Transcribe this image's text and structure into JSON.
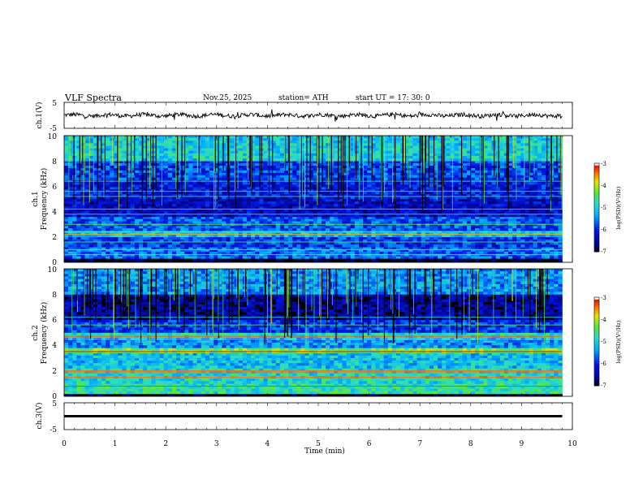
{
  "header": {
    "title": "VLF  Spectra",
    "date": "Nov.25, 2025",
    "station": "station= ATH",
    "start": "start  UT  =    17: 30: 0"
  },
  "chart_data": [
    {
      "type": "line",
      "panel": "ch1-waveform",
      "ylabel": "ch.1(V)",
      "ylim": [
        -5,
        5
      ],
      "yticks": [
        "5",
        "-5"
      ],
      "xlim": [
        0,
        10
      ],
      "x_extent_min": 9.8,
      "baseline": 0,
      "color": "#000000"
    },
    {
      "type": "heatmap",
      "panel": "ch1-spectrogram",
      "ylabel_line1": "ch.1",
      "ylabel_line2": "Frequency  (kHz)",
      "ylim": [
        0,
        10
      ],
      "yticks": [
        "0",
        "2",
        "4",
        "6",
        "8",
        "10"
      ],
      "xlim": [
        0,
        10
      ],
      "x_extent_min": 9.8,
      "colorbar": {
        "label": "log(PSD)(V²/Hz)",
        "range": [
          -7,
          -3
        ],
        "ticks": [
          "-3",
          "-4",
          "-5",
          "-6",
          "-7"
        ]
      },
      "bands": [
        {
          "f": [
            0.0,
            0.3
          ],
          "level": -7.0
        },
        {
          "f": [
            0.3,
            1.2
          ],
          "level": -5.6
        },
        {
          "f": [
            1.2,
            2.0
          ],
          "level": -5.9
        },
        {
          "f": [
            2.0,
            2.5
          ],
          "level": -5.1
        },
        {
          "f": [
            2.5,
            3.6
          ],
          "level": -5.7
        },
        {
          "f": [
            3.6,
            5.0
          ],
          "level": -6.3
        },
        {
          "f": [
            5.0,
            6.5
          ],
          "level": -6.1
        },
        {
          "f": [
            6.5,
            8.0
          ],
          "level": -5.8
        },
        {
          "f": [
            8.0,
            10.0
          ],
          "level": -5.0
        }
      ],
      "lines_khz": [
        0.6,
        1.0,
        1.6,
        2.2,
        2.4,
        3.0,
        3.8,
        4.2,
        5.2,
        5.6,
        6.4
      ]
    },
    {
      "type": "heatmap",
      "panel": "ch2-spectrogram",
      "ylabel_line1": "ch.2",
      "ylabel_line2": "Frequency  (kHz)",
      "ylim": [
        0,
        10
      ],
      "yticks": [
        "0",
        "2",
        "4",
        "6",
        "8",
        "10"
      ],
      "xlim": [
        0,
        10
      ],
      "x_extent_min": 9.8,
      "colorbar": {
        "label": "log(PSD)(V²/Hz)",
        "range": [
          -7,
          -3
        ],
        "ticks": [
          "-3",
          "-4",
          "-5",
          "-6",
          "-7"
        ]
      },
      "bands": [
        {
          "f": [
            0.0,
            0.2
          ],
          "level": -7.0
        },
        {
          "f": [
            0.2,
            1.0
          ],
          "level": -4.7
        },
        {
          "f": [
            1.0,
            2.2
          ],
          "level": -4.9
        },
        {
          "f": [
            2.2,
            3.4
          ],
          "level": -5.1
        },
        {
          "f": [
            3.4,
            3.8
          ],
          "level": -4.3
        },
        {
          "f": [
            3.8,
            4.6
          ],
          "level": -5.4
        },
        {
          "f": [
            4.6,
            5.0
          ],
          "level": -4.8
        },
        {
          "f": [
            5.0,
            6.0
          ],
          "level": -5.9
        },
        {
          "f": [
            6.0,
            8.0
          ],
          "level": -6.5
        },
        {
          "f": [
            8.0,
            10.0
          ],
          "level": -5.4
        }
      ],
      "lines_khz": [
        0.8,
        1.5,
        1.9,
        2.0,
        3.5,
        4.5,
        4.7,
        5.6,
        6.2
      ]
    },
    {
      "type": "line",
      "panel": "ch3-waveform",
      "ylabel": "ch.3(V)",
      "ylim": [
        -5,
        5
      ],
      "yticks": [
        "5",
        "-5"
      ],
      "xlim": [
        0,
        10
      ],
      "x_extent_min": 9.8,
      "baseline": 0,
      "color": "#000000"
    }
  ],
  "xaxis": {
    "label": "Time  (min)",
    "ticks": [
      "0",
      "1",
      "2",
      "3",
      "4",
      "5",
      "6",
      "7",
      "8",
      "9",
      "10"
    ]
  }
}
